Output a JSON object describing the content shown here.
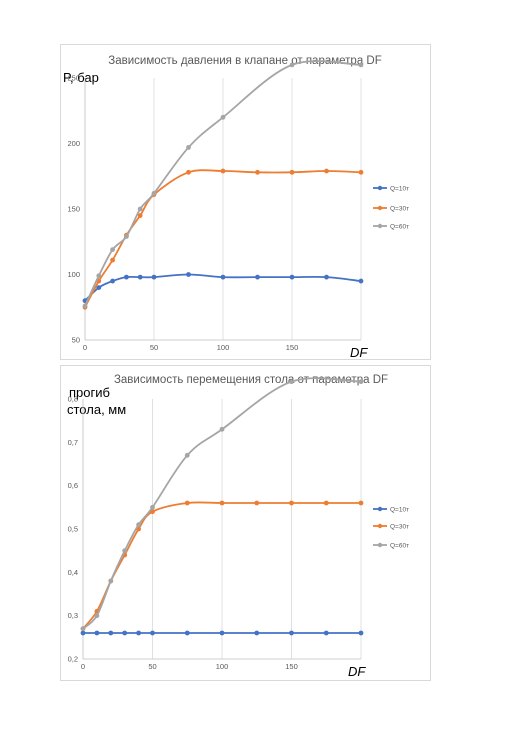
{
  "chart_data": [
    {
      "type": "line",
      "title": "Зависимость давления в клапане от параметра DF",
      "ylabel": "P, бар",
      "xlabel": "DF",
      "xlim": [
        0,
        200
      ],
      "ylim": [
        50,
        250
      ],
      "xticks": [
        0,
        50,
        100,
        150
      ],
      "yticks": [
        50,
        100,
        150,
        200,
        250
      ],
      "grid": "vertical",
      "legend_position": "right",
      "series": [
        {
          "name": "Q=10т",
          "color": "#4472c4",
          "x": [
            0,
            10,
            20,
            30,
            40,
            50,
            75,
            100,
            125,
            150,
            175,
            200
          ],
          "y": [
            80,
            90,
            95,
            98,
            98,
            98,
            100,
            98,
            98,
            98,
            98,
            95
          ]
        },
        {
          "name": "Q=30т",
          "color": "#ed7d31",
          "x": [
            0,
            10,
            20,
            30,
            40,
            50,
            75,
            100,
            125,
            150,
            175,
            200
          ],
          "y": [
            75,
            95,
            111,
            130,
            145,
            161,
            178,
            179,
            178,
            178,
            179,
            178
          ]
        },
        {
          "name": "Q=60т",
          "color": "#a5a5a5",
          "x": [
            0,
            10,
            20,
            30,
            40,
            50,
            75,
            100,
            150,
            200
          ],
          "y": [
            76,
            99,
            119,
            129,
            150,
            162,
            197,
            220,
            260,
            260
          ]
        }
      ]
    },
    {
      "type": "line",
      "title": "Зависимость перемещения стола от параметра DF",
      "ylabel_lines": [
        "прогиб",
        "стола, мм"
      ],
      "xlabel": "DF",
      "xlim": [
        0,
        200
      ],
      "ylim": [
        0.2,
        0.8
      ],
      "xticks": [
        0,
        50,
        100,
        150
      ],
      "yticks": [
        0.2,
        0.3,
        0.4,
        0.5,
        0.6,
        0.7,
        0.8
      ],
      "ytick_labels": [
        "0,2",
        "0,3",
        "0,4",
        "0,5",
        "0,6",
        "0,7",
        "0,8"
      ],
      "grid": "vertical",
      "legend_position": "right",
      "series": [
        {
          "name": "Q=10т",
          "color": "#4472c4",
          "x": [
            0,
            10,
            20,
            30,
            40,
            50,
            75,
            100,
            125,
            150,
            175,
            200
          ],
          "y": [
            0.26,
            0.26,
            0.26,
            0.26,
            0.26,
            0.26,
            0.26,
            0.26,
            0.26,
            0.26,
            0.26,
            0.26
          ]
        },
        {
          "name": "Q=30т",
          "color": "#ed7d31",
          "x": [
            0,
            10,
            20,
            30,
            40,
            50,
            75,
            100,
            125,
            150,
            175,
            200
          ],
          "y": [
            0.27,
            0.31,
            0.38,
            0.44,
            0.5,
            0.54,
            0.56,
            0.56,
            0.56,
            0.56,
            0.56,
            0.56
          ]
        },
        {
          "name": "Q=60т",
          "color": "#a5a5a5",
          "x": [
            0,
            10,
            20,
            30,
            40,
            50,
            75,
            100,
            150,
            200
          ],
          "y": [
            0.27,
            0.3,
            0.38,
            0.45,
            0.51,
            0.55,
            0.67,
            0.73,
            0.84,
            0.84
          ]
        }
      ]
    }
  ]
}
